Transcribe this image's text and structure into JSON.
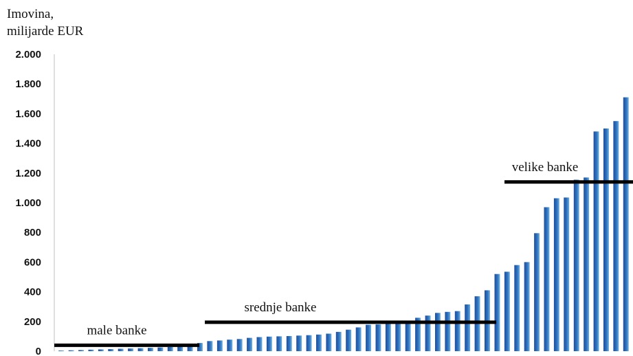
{
  "chart_data": {
    "type": "bar",
    "ylabel_lines": [
      "Imovina,",
      "milijarde EUR"
    ],
    "ylim": [
      0,
      2000
    ],
    "yticks": [
      0,
      200,
      400,
      600,
      800,
      1000,
      1200,
      1400,
      1600,
      1800,
      2000
    ],
    "ytick_labels": [
      "0",
      "200",
      "400",
      "600",
      "800",
      "1.000",
      "1.200",
      "1.400",
      "1.600",
      "1.800",
      "2.000"
    ],
    "grid": false,
    "values": [
      4,
      6,
      8,
      10,
      12,
      14,
      16,
      18,
      20,
      22,
      25,
      28,
      35,
      50,
      55,
      68,
      72,
      78,
      82,
      90,
      95,
      98,
      100,
      102,
      105,
      108,
      112,
      118,
      130,
      145,
      160,
      178,
      180,
      185,
      190,
      205,
      225,
      240,
      258,
      265,
      270,
      315,
      370,
      410,
      520,
      535,
      580,
      600,
      795,
      970,
      1030,
      1035,
      1155,
      1170,
      1480,
      1500,
      1550,
      1710
    ],
    "segments": [
      {
        "label": "male banke",
        "level": 40
      },
      {
        "label": "srednje banke",
        "level": 195
      },
      {
        "label": "velike banke",
        "level": 1140
      }
    ],
    "colors": {
      "bar_dark": "#1f4e9c",
      "bar_light": "#5aa2d8",
      "line": "#000000"
    }
  }
}
